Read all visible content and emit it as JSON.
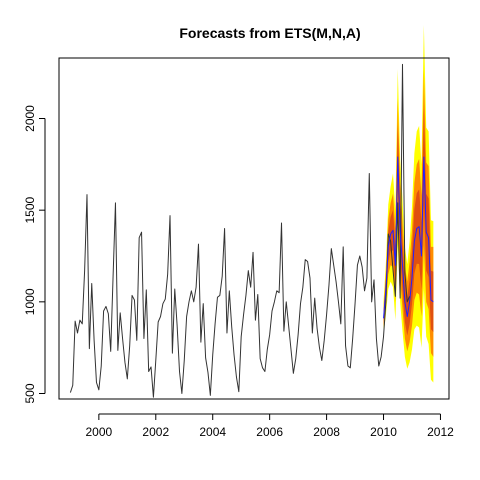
{
  "chart_data": {
    "type": "line",
    "title": "Forecasts from ETS(M,N,A)",
    "xlabel": "",
    "ylabel": "",
    "xlim": [
      1998.6,
      2012.3
    ],
    "ylim": [
      470,
      2330
    ],
    "x_ticks": [
      2000,
      2002,
      2004,
      2006,
      2008,
      2010,
      2012
    ],
    "x_tick_labels": [
      "2000",
      "2002",
      "2004",
      "2006",
      "2008",
      "2010",
      "2012"
    ],
    "y_ticks": [
      500,
      1000,
      1500,
      2000
    ],
    "y_tick_labels": [
      "500",
      "1000",
      "1500",
      "2000"
    ],
    "grid": false,
    "legend": "none",
    "colors": {
      "observed": "#333333",
      "forecast": "#2020ff",
      "interval_95": "#ffff00",
      "interval_80": "#ff8c00",
      "interval_80_core": "#e05010"
    },
    "observed": {
      "start": 1999.0,
      "step": 0.08333,
      "values": [
        505,
        545,
        895,
        830,
        900,
        880,
        1170,
        1585,
        745,
        1100,
        790,
        560,
        520,
        650,
        950,
        975,
        935,
        730,
        1140,
        1540,
        735,
        940,
        800,
        670,
        580,
        760,
        1035,
        1010,
        790,
        1350,
        1380,
        800,
        1065,
        620,
        645,
        480,
        680,
        890,
        920,
        990,
        1015,
        1150,
        1470,
        720,
        1070,
        870,
        620,
        500,
        680,
        920,
        1000,
        1060,
        1000,
        1080,
        1315,
        780,
        990,
        695,
        615,
        490,
        710,
        880,
        1025,
        1035,
        1140,
        1400,
        830,
        1060,
        865,
        710,
        590,
        510,
        810,
        930,
        1035,
        1170,
        1080,
        1270,
        900,
        1040,
        690,
        640,
        620,
        740,
        820,
        950,
        1000,
        1060,
        1050,
        1430,
        840,
        1000,
        870,
        740,
        610,
        690,
        820,
        990,
        1080,
        1230,
        1220,
        1130,
        830,
        1020,
        855,
        750,
        680,
        790,
        930,
        1090,
        1290,
        1200,
        1110,
        1000,
        880,
        1300,
        760,
        650,
        640,
        800,
        990,
        1200,
        1250,
        1190,
        1060,
        1130,
        1700,
        1000,
        1120,
        800,
        650,
        700,
        810,
        1000,
        1370,
        1330,
        1175,
        1030,
        1540,
        1020,
        2295,
        1160,
        1000,
        1030
      ]
    },
    "forecast": {
      "start": 2010.0,
      "step": 0.08333,
      "values": [
        910,
        1070,
        1300,
        1370,
        1390,
        1200,
        1790,
        1390,
        1200,
        1000,
        920,
        1000,
        1130,
        1330,
        1400,
        1410,
        1250,
        1790,
        1380,
        1350,
        1010,
        1000
      ],
      "lower_80": [
        860,
        980,
        1150,
        1200,
        1190,
        1000,
        1470,
        1130,
        960,
        800,
        730,
        780,
        870,
        1010,
        1050,
        1040,
        920,
        1310,
        1000,
        960,
        720,
        700
      ],
      "upper_80": [
        960,
        1160,
        1450,
        1540,
        1590,
        1400,
        2110,
        1650,
        1440,
        1200,
        1110,
        1220,
        1390,
        1650,
        1750,
        1780,
        1580,
        2270,
        1760,
        1740,
        1300,
        1300
      ],
      "lower_95": [
        820,
        930,
        1070,
        1110,
        1080,
        900,
        1310,
        1000,
        840,
        700,
        635,
        670,
        740,
        850,
        870,
        860,
        750,
        1070,
        810,
        770,
        575,
        560
      ],
      "upper_95": [
        1000,
        1210,
        1530,
        1630,
        1700,
        1500,
        2270,
        1780,
        1560,
        1300,
        1205,
        1330,
        1520,
        1810,
        1930,
        1960,
        1750,
        2510,
        1950,
        1930,
        1445,
        1440
      ]
    }
  }
}
